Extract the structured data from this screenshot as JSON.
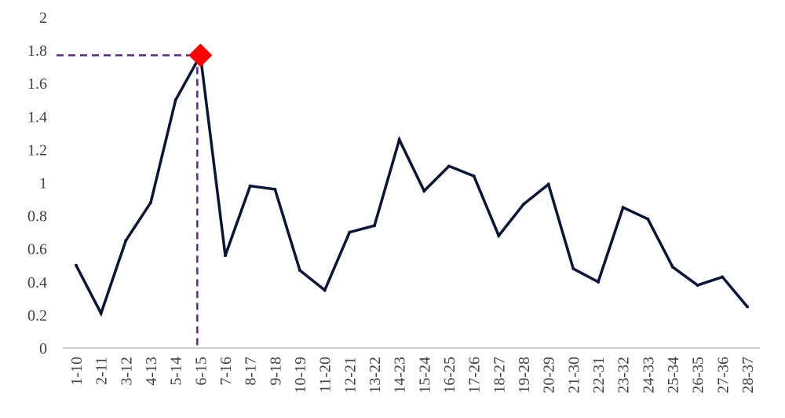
{
  "chart_data": {
    "type": "line",
    "title": "",
    "xlabel": "",
    "ylabel": "",
    "categories": [
      "1-10",
      "2-11",
      "3-12",
      "4-13",
      "5-14",
      "6-15",
      "7-16",
      "8-17",
      "9-18",
      "10-19",
      "11-20",
      "12-21",
      "13-22",
      "14-23",
      "15-24",
      "16-25",
      "17-26",
      "18-27",
      "19-28",
      "20-29",
      "21-30",
      "22-31",
      "23-32",
      "24-33",
      "25-34",
      "26-35",
      "27-36",
      "28-37"
    ],
    "series": [
      {
        "values": [
          0.5,
          0.21,
          0.65,
          0.88,
          1.5,
          1.77,
          0.56,
          0.98,
          0.96,
          0.47,
          0.35,
          0.7,
          0.74,
          1.26,
          0.95,
          1.1,
          1.04,
          0.68,
          0.87,
          0.99,
          0.48,
          0.4,
          0.85,
          0.78,
          0.49,
          0.38,
          0.43,
          0.25
        ],
        "color": "#0b1538"
      }
    ],
    "ylim": [
      0,
      2
    ],
    "yticks": [
      "0",
      "0.2",
      "0.4",
      "0.6",
      "0.8",
      "1",
      "1.2",
      "1.4",
      "1.6",
      "1.8",
      "2"
    ],
    "grid": false,
    "legend": "none",
    "highlight": {
      "category": "6-15",
      "value": 1.77,
      "marker": "diamond",
      "marker_color": "#ff0000",
      "guide_color": "#5b2c83",
      "guide_style": "dashed"
    }
  }
}
